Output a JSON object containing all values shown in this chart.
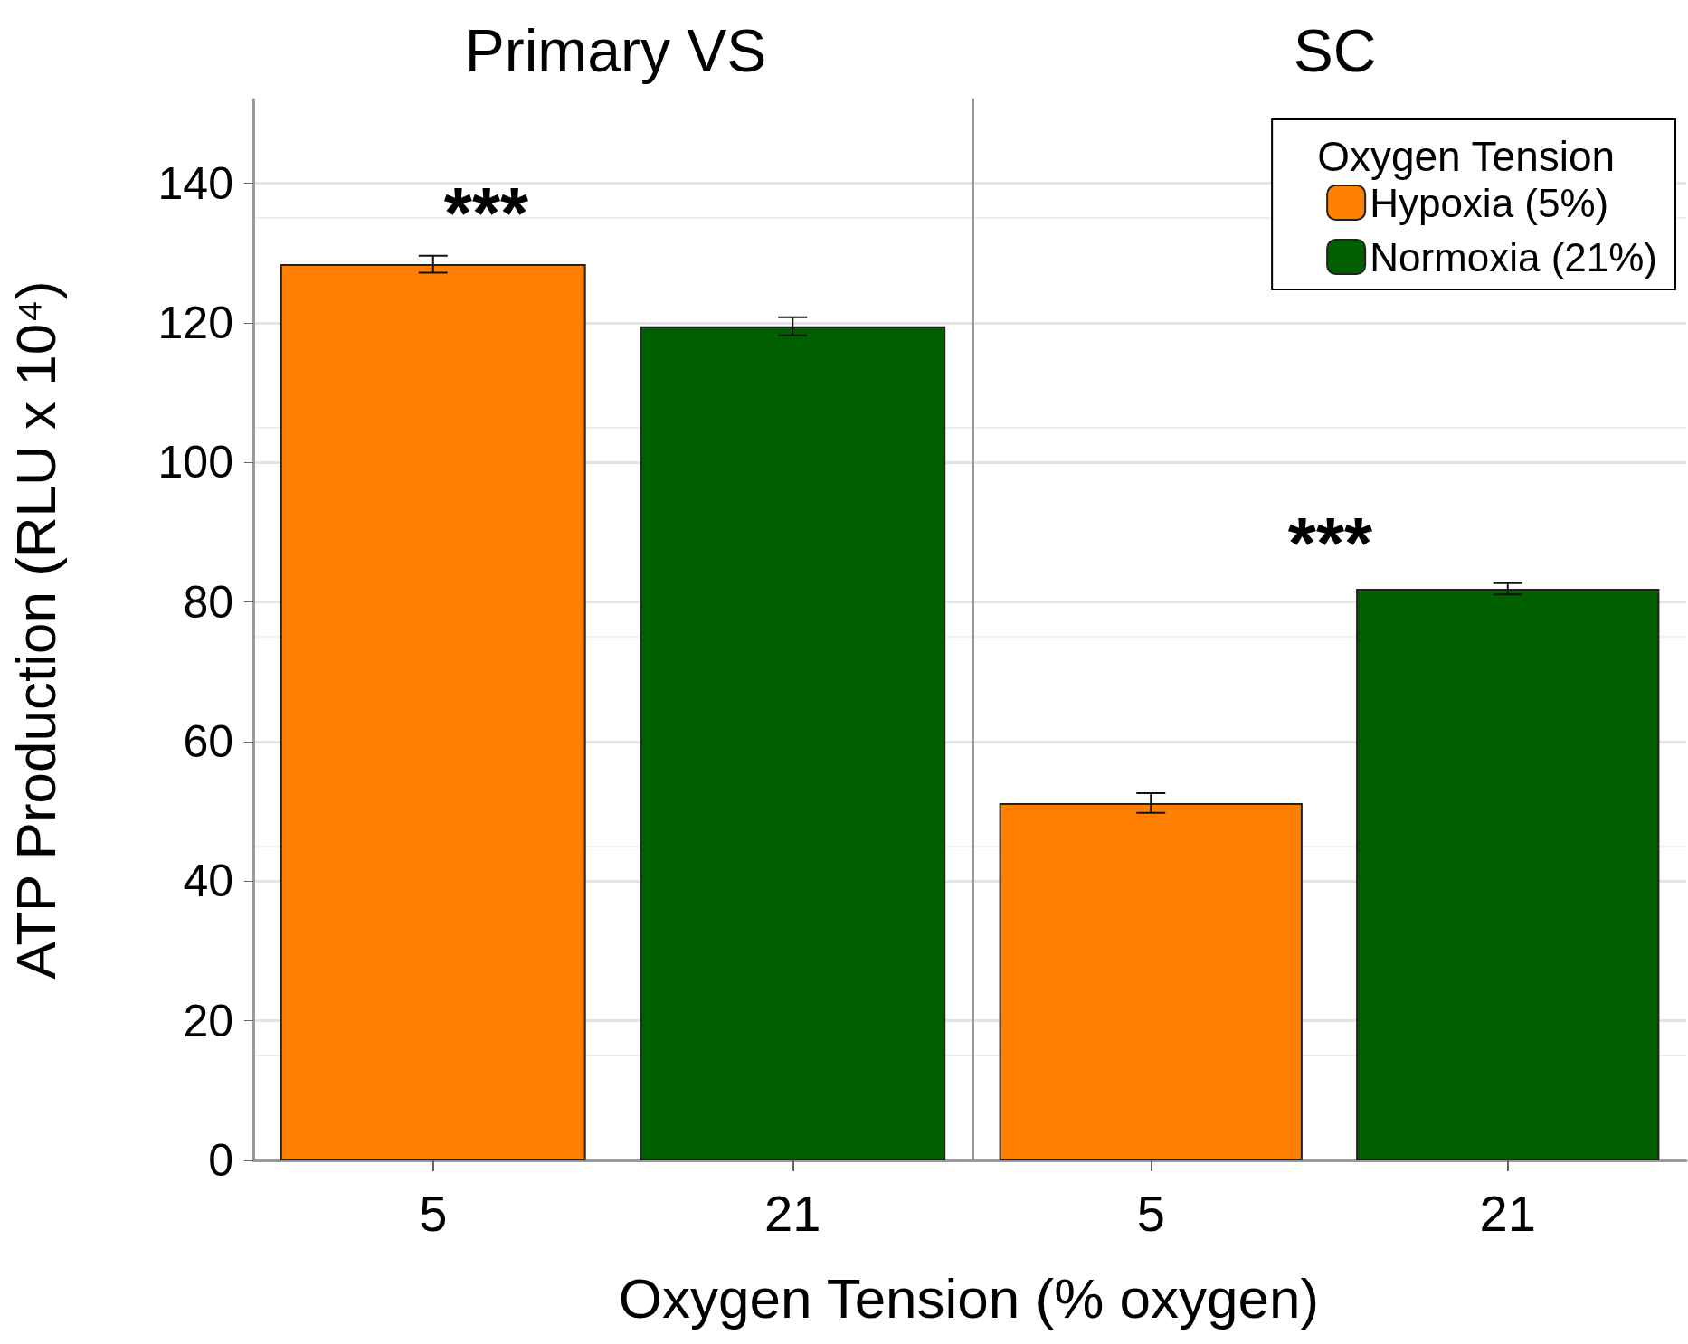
{
  "chart_data": [
    {
      "type": "bar",
      "title": "Primary VS",
      "xlabel": "Oxygen Tension (% oxygen)",
      "ylabel": "ATP Production (RLU x 10⁴)",
      "categories": [
        "5",
        "21"
      ],
      "series": [
        {
          "color": "#ff8000",
          "values": [
            128.4,
            null
          ],
          "errors": [
            1.2,
            null
          ]
        },
        {
          "color": "#006000",
          "values": [
            null,
            119.5
          ],
          "errors": [
            null,
            1.3
          ]
        }
      ],
      "ylim": [
        0,
        152
      ],
      "yticks": [
        0,
        20,
        40,
        60,
        80,
        100,
        120,
        140
      ],
      "grid": "y",
      "annotations": [
        "***"
      ]
    },
    {
      "type": "bar",
      "title": "SC",
      "categories": [
        "5",
        "21"
      ],
      "legend_title": "Oxygen Tension",
      "legend": "top right",
      "tick_labels": "x",
      "series": [
        {
          "name": "Hypoxia (5%)",
          "color": "#ff8000",
          "values": [
            51.2,
            null
          ],
          "errors": [
            1.4,
            null
          ]
        },
        {
          "name": "Normoxia (21%)",
          "color": "#006000",
          "values": [
            null,
            81.9
          ],
          "errors": [
            null,
            0.8
          ]
        }
      ],
      "ylim": [
        0,
        152
      ],
      "yticks": [
        0,
        20,
        40,
        60,
        80,
        100,
        120,
        140
      ],
      "grid": "y",
      "annotations": [
        "***"
      ]
    }
  ]
}
